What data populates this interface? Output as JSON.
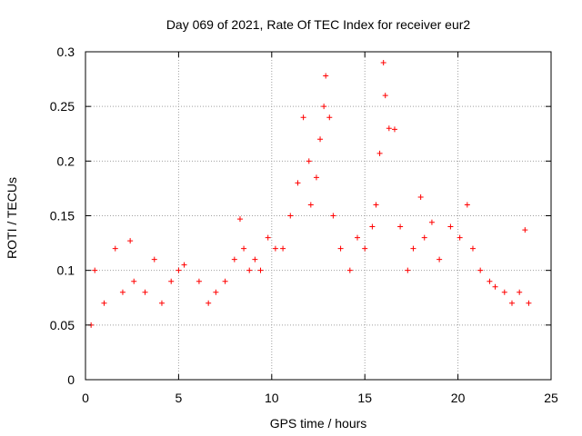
{
  "chart_data": {
    "type": "scatter",
    "title": "Day 069 of 2021, Rate Of TEC Index for receiver eur2",
    "xlabel": "GPS time / hours",
    "ylabel": "ROTI / TECUs",
    "xlim": [
      0,
      25
    ],
    "ylim": [
      0,
      0.3
    ],
    "xticks": [
      0,
      5,
      10,
      15,
      20,
      25
    ],
    "xtick_labels": [
      "0",
      "5",
      "10",
      "15",
      "20",
      "25"
    ],
    "yticks": [
      0,
      0.05,
      0.1,
      0.15,
      0.2,
      0.25,
      0.3
    ],
    "ytick_labels": [
      "0",
      "0.05",
      "0.1",
      "0.15",
      "0.2",
      "0.25",
      "0.3"
    ],
    "grid": true,
    "marker": "plus",
    "color": "#ff0000",
    "series": [
      {
        "x": [
          0.3,
          0.5,
          1.0,
          1.6,
          2.0,
          2.4,
          2.6,
          3.2,
          3.7,
          4.1,
          4.6,
          5.0,
          5.3,
          6.1,
          6.6,
          7.0,
          7.5,
          8.0,
          8.3,
          8.5,
          8.8,
          9.1,
          9.4,
          9.8,
          10.2,
          10.6,
          11.0,
          11.4,
          11.7,
          12.0,
          12.1,
          12.4,
          12.6,
          12.8,
          12.9,
          13.1,
          13.3,
          13.7,
          14.2,
          14.6,
          15.0,
          15.4,
          15.6,
          15.8,
          16.0,
          16.1,
          16.3,
          16.6,
          16.9,
          17.3,
          17.6,
          18.0,
          18.2,
          18.6,
          19.0,
          19.6,
          20.1,
          20.5,
          20.8,
          21.2,
          21.7,
          22.0,
          22.5,
          22.9,
          23.3,
          23.6,
          23.8
        ],
        "y": [
          0.05,
          0.1,
          0.07,
          0.12,
          0.08,
          0.127,
          0.09,
          0.08,
          0.11,
          0.07,
          0.09,
          0.1,
          0.105,
          0.09,
          0.07,
          0.08,
          0.09,
          0.11,
          0.147,
          0.12,
          0.1,
          0.11,
          0.1,
          0.13,
          0.12,
          0.12,
          0.15,
          0.18,
          0.24,
          0.2,
          0.16,
          0.185,
          0.22,
          0.25,
          0.278,
          0.24,
          0.15,
          0.12,
          0.1,
          0.13,
          0.12,
          0.14,
          0.16,
          0.207,
          0.29,
          0.26,
          0.23,
          0.229,
          0.14,
          0.1,
          0.12,
          0.167,
          0.13,
          0.144,
          0.11,
          0.14,
          0.13,
          0.16,
          0.12,
          0.1,
          0.09,
          0.085,
          0.08,
          0.07,
          0.08,
          0.137,
          0.07
        ]
      }
    ]
  }
}
